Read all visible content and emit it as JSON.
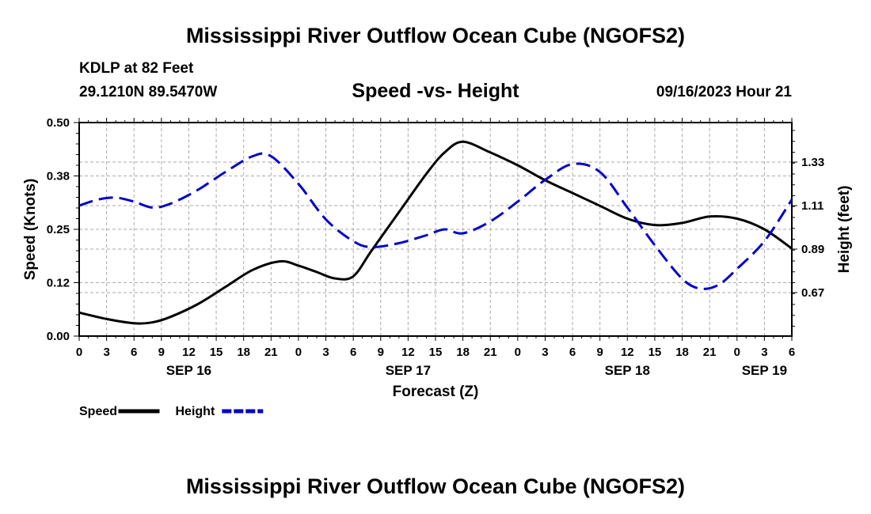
{
  "page": {
    "main_title": "Mississippi River Outflow Ocean Cube (NGOFS2)",
    "station": "KDLP at 82 Feet",
    "coords": "29.1210N  89.5470W",
    "subtitle": "Speed -vs- Height",
    "datetime": "09/16/2023 Hour 21",
    "footer_title": "Mississippi River Outflow Ocean Cube (NGOFS2)"
  },
  "chart_data": {
    "type": "line",
    "title": "Speed -vs- Height",
    "xlabel": "Forecast (Z)",
    "ylabel_left": "Speed (Knots)",
    "ylabel_right": "Height (feet)",
    "x_range_hours": [
      0,
      78
    ],
    "x_ticks": [
      "0",
      "3",
      "6",
      "9",
      "12",
      "15",
      "18",
      "21",
      "0",
      "3",
      "6",
      "9",
      "12",
      "15",
      "18",
      "21",
      "0",
      "3",
      "6",
      "9",
      "12",
      "15",
      "18",
      "21",
      "0",
      "3",
      "6"
    ],
    "date_labels": [
      {
        "label": "SEP 16",
        "hour": 12
      },
      {
        "label": "SEP 17",
        "hour": 36
      },
      {
        "label": "SEP 18",
        "hour": 60
      },
      {
        "label": "SEP 19",
        "hour": 75
      }
    ],
    "y_left": {
      "range": [
        0,
        0.5
      ],
      "ticks": [
        0.0,
        0.125,
        0.25,
        0.375,
        0.5
      ],
      "tick_labels": [
        "0.00",
        "0.12",
        "0.25",
        "0.38",
        "0.50"
      ]
    },
    "y_right": {
      "range": [
        0.45,
        1.53
      ],
      "ticks": [
        0.67,
        0.89,
        1.11,
        1.33
      ],
      "tick_labels": [
        "0.67",
        "0.89",
        "1.11",
        "1.33"
      ]
    },
    "grid": true,
    "legend_position": "bottom-left",
    "series": [
      {
        "name": "Speed",
        "axis": "left",
        "color": "#000000",
        "style": "solid",
        "x": [
          0,
          3,
          6,
          8,
          10,
          13,
          16,
          19,
          22,
          24,
          26,
          28,
          30,
          32,
          35,
          38,
          40,
          42,
          45,
          48,
          51,
          54,
          57,
          60,
          63,
          66,
          69,
          72,
          75,
          78
        ],
        "values": [
          0.055,
          0.04,
          0.03,
          0.032,
          0.045,
          0.075,
          0.115,
          0.155,
          0.175,
          0.165,
          0.15,
          0.135,
          0.14,
          0.2,
          0.29,
          0.38,
          0.43,
          0.455,
          0.43,
          0.4,
          0.365,
          0.335,
          0.305,
          0.275,
          0.26,
          0.265,
          0.28,
          0.275,
          0.25,
          0.205
        ]
      },
      {
        "name": "Height",
        "axis": "right",
        "color": "#0000cc",
        "style": "dashed",
        "x": [
          0,
          2,
          4,
          6,
          8,
          10,
          13,
          16,
          19,
          21,
          24,
          27,
          30,
          32,
          35,
          38,
          40,
          42,
          45,
          48,
          51,
          54,
          57,
          60,
          63,
          66,
          68,
          70,
          72,
          75,
          78
        ],
        "values": [
          1.11,
          1.14,
          1.15,
          1.13,
          1.1,
          1.12,
          1.19,
          1.28,
          1.36,
          1.36,
          1.22,
          1.04,
          0.93,
          0.9,
          0.92,
          0.96,
          0.99,
          0.97,
          1.03,
          1.13,
          1.24,
          1.32,
          1.28,
          1.1,
          0.91,
          0.74,
          0.69,
          0.71,
          0.79,
          0.93,
          1.14
        ]
      }
    ]
  }
}
